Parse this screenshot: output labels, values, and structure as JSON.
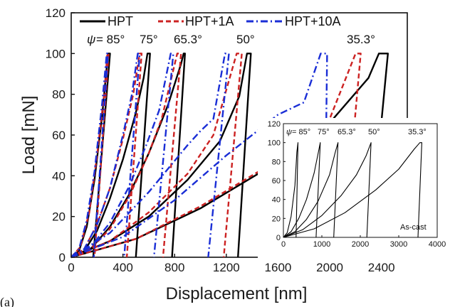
{
  "panel_label": "(a)",
  "colors": {
    "HPT": "#000000",
    "HPT+1A": "#cc2222",
    "HPT+10A": "#1a2ed6"
  },
  "chart_data": [
    {
      "type": "line",
      "xlabel": "Displacement [nm]",
      "ylabel": "Load [mN]",
      "xlim": [
        0,
        2600
      ],
      "ylim": [
        0,
        120
      ],
      "x_ticks": [
        "0",
        "400",
        "800",
        "1200",
        "1600",
        "2000",
        "2400"
      ],
      "y_ticks": [
        "0",
        "20",
        "40",
        "60",
        "80",
        "100",
        "120"
      ],
      "legend": {
        "placement": "top",
        "entries": [
          "HPT",
          "HPT+1A",
          "HPT+10A"
        ]
      },
      "annotations": {
        "psi_symbol": "ψ",
        "angles": [
          "= 85°",
          "75°",
          "65.3°",
          "50°",
          "35.3°"
        ]
      },
      "series": [
        {
          "name": "HPT",
          "style": "solid",
          "curves": [
            {
              "angle": "85°",
              "x": [
                0,
                60,
                120,
                180,
                240,
                285,
                300,
                300,
                170
              ],
              "y": [
                0,
                3,
                15,
                38,
                70,
                100,
                100,
                100,
                0
              ]
            },
            {
              "angle": "75°",
              "x": [
                0,
                100,
                200,
                300,
                400,
                500,
                560,
                590,
                610,
                500
              ],
              "y": [
                0,
                3,
                13,
                29,
                48,
                71,
                88,
                100,
                100,
                0
              ]
            },
            {
              "angle": "65.3°",
              "x": [
                0,
                150,
                300,
                450,
                600,
                750,
                850,
                870,
                880,
                780
              ],
              "y": [
                0,
                4,
                15,
                31,
                51,
                75,
                95,
                100,
                100,
                0
              ]
            },
            {
              "angle": "50°",
              "x": [
                0,
                300,
                600,
                900,
                1150,
                1300,
                1360,
                1390,
                1290
              ],
              "y": [
                0,
                8,
                20,
                38,
                57,
                79,
                100,
                100,
                0
              ]
            },
            {
              "angle": "35.3°",
              "x": [
                0,
                500,
                1000,
                1500,
                2000,
                2300,
                2380,
                2450,
                2300
              ],
              "y": [
                0,
                9,
                24,
                43,
                66,
                88,
                100,
                100,
                0
              ]
            }
          ]
        },
        {
          "name": "HPT+1A",
          "style": "dashed",
          "curves": [
            {
              "angle": "85°",
              "x": [
                0,
                70,
                140,
                200,
                255,
                280,
                290,
                180
              ],
              "y": [
                0,
                5,
                22,
                50,
                80,
                100,
                100,
                0
              ]
            },
            {
              "angle": "75°",
              "x": [
                0,
                100,
                200,
                300,
                400,
                480,
                530,
                545,
                430
              ],
              "y": [
                0,
                4,
                16,
                34,
                58,
                80,
                100,
                100,
                0
              ]
            },
            {
              "angle": "65.3°",
              "x": [
                0,
                150,
                300,
                450,
                600,
                700,
                820,
                850,
                710
              ],
              "y": [
                0,
                4,
                14,
                30,
                51,
                68,
                100,
                100,
                0
              ]
            },
            {
              "angle": "50°",
              "x": [
                0,
                300,
                600,
                900,
                1100,
                1280,
                1320,
                1180
              ],
              "y": [
                0,
                8,
                22,
                41,
                60,
                100,
                100,
                0
              ]
            },
            {
              "angle": "35.3°",
              "x": [
                0,
                500,
                1000,
                1500,
                1800,
                2000,
                2200,
                2240,
                2100
              ],
              "y": [
                0,
                9,
                25,
                44,
                58,
                68,
                100,
                100,
                0
              ]
            }
          ]
        },
        {
          "name": "HPT+10A",
          "style": "dashdot",
          "curves": [
            {
              "angle": "85°",
              "x": [
                0,
                60,
                120,
                180,
                240,
                275,
                285,
                175
              ],
              "y": [
                0,
                4,
                18,
                42,
                76,
                100,
                100,
                0
              ]
            },
            {
              "angle": "75°",
              "x": [
                0,
                100,
                200,
                300,
                400,
                470,
                515,
                530,
                410
              ],
              "y": [
                0,
                4,
                16,
                34,
                60,
                80,
                100,
                100,
                0
              ]
            },
            {
              "angle": "65.3°",
              "x": [
                0,
                150,
                300,
                450,
                580,
                680,
                770,
                790,
                640
              ],
              "y": [
                0,
                5,
                17,
                35,
                55,
                72,
                100,
                100,
                0
              ]
            },
            {
              "angle": "50°",
              "x": [
                0,
                300,
                600,
                900,
                1000,
                1100,
                1190,
                1220,
                1060
              ],
              "y": [
                0,
                12,
                32,
                55,
                62,
                68,
                100,
                100,
                0
              ]
            },
            {
              "angle": "35.3°",
              "x": [
                0,
                400,
                800,
                1200,
                1600,
                1800,
                1930,
                1980,
                1960
              ],
              "y": [
                0,
                10,
                28,
                50,
                70,
                76,
                100,
                100,
                0
              ]
            }
          ]
        }
      ]
    },
    {
      "type": "line",
      "xlim": [
        0,
        4000
      ],
      "ylim": [
        0,
        120
      ],
      "x_ticks": [
        "0",
        "1000",
        "2000",
        "3000",
        "4000"
      ],
      "y_ticks": [
        "0",
        "20",
        "40",
        "60",
        "80",
        "100",
        "120"
      ],
      "annotations": {
        "psi_symbol": "ψ",
        "angles": [
          "= 85°",
          "75°",
          "65.3°",
          "50°",
          "35.3°"
        ],
        "material": "As-cast"
      },
      "series": [
        {
          "name": "As-cast",
          "style": "solid",
          "curves": [
            {
              "angle": "85°",
              "x": [
                0,
                100,
                200,
                300,
                350,
                380,
                330
              ],
              "y": [
                0,
                5,
                22,
                55,
                90,
                100,
                0
              ]
            },
            {
              "angle": "75°",
              "x": [
                0,
                200,
                400,
                600,
                800,
                900,
                960,
                850
              ],
              "y": [
                0,
                6,
                20,
                40,
                68,
                88,
                100,
                0
              ]
            },
            {
              "angle": "65.3°",
              "x": [
                0,
                300,
                600,
                900,
                1200,
                1350,
                1420,
                1310
              ],
              "y": [
                0,
                6,
                19,
                38,
                66,
                90,
                100,
                0
              ]
            },
            {
              "angle": "50°",
              "x": [
                0,
                500,
                1000,
                1500,
                1900,
                2150,
                2280,
                2170
              ],
              "y": [
                0,
                8,
                23,
                44,
                66,
                86,
                100,
                0
              ]
            },
            {
              "angle": "35.3°",
              "x": [
                0,
                800,
                1600,
                2400,
                3000,
                3400,
                3550,
                3600,
                3500
              ],
              "y": [
                0,
                9,
                26,
                50,
                72,
                93,
                100,
                100,
                0
              ]
            }
          ]
        }
      ]
    }
  ]
}
